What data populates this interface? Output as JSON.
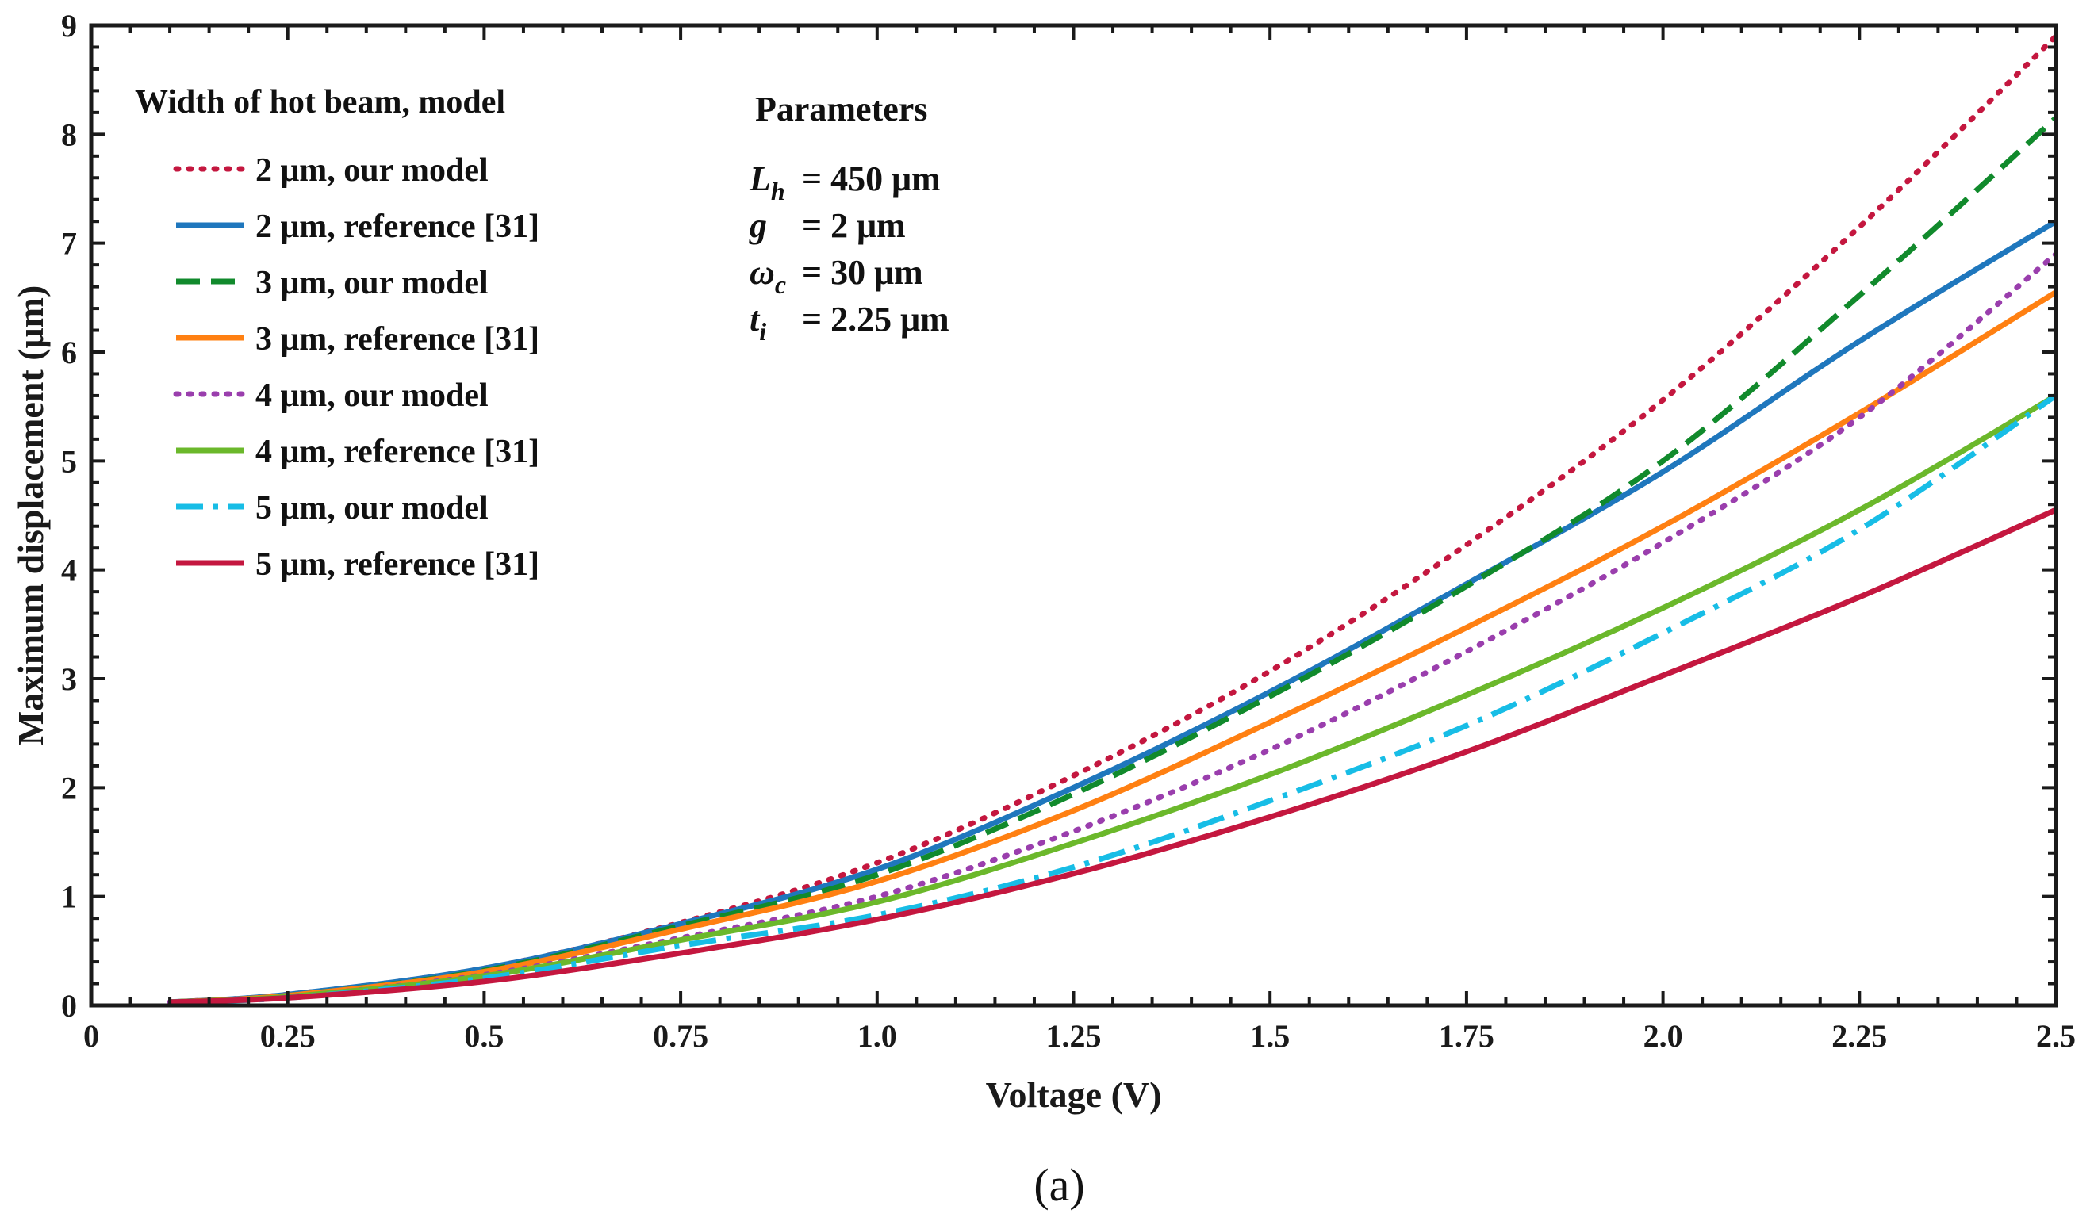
{
  "chart_data": {
    "type": "line",
    "title": "",
    "xlabel": "Voltage (V)",
    "ylabel": "Maximum displacement (μm)",
    "xlim": [
      0,
      2.5
    ],
    "ylim": [
      0,
      9
    ],
    "grid": false,
    "x_ticks": [
      0,
      0.25,
      0.5,
      0.75,
      1.0,
      1.25,
      1.5,
      1.75,
      2.0,
      2.25,
      2.5
    ],
    "x_tick_labels": [
      "0",
      "0.25",
      "0.5",
      "0.75",
      "1.0",
      "1.25",
      "1.5",
      "1.75",
      "2.0",
      "2.25",
      "2.5"
    ],
    "y_ticks": [
      0,
      1,
      2,
      3,
      4,
      5,
      6,
      7,
      8,
      9
    ],
    "y_tick_labels": [
      "0",
      "1",
      "2",
      "3",
      "4",
      "5",
      "6",
      "7",
      "8",
      "9"
    ],
    "legend": {
      "title": "Width of hot beam, model",
      "position": "top-left"
    },
    "x": [
      0.1,
      0.25,
      0.5,
      0.75,
      1.0,
      1.25,
      1.5,
      1.75,
      2.0,
      2.25,
      2.5
    ],
    "series": [
      {
        "name": "2 μm, our model",
        "color": "#c4173f",
        "dash": "dotted",
        "values": [
          0.03,
          0.1,
          0.34,
          0.76,
          1.31,
          2.11,
          3.07,
          4.23,
          5.56,
          7.15,
          8.9
        ]
      },
      {
        "name": "2 μm, reference [31]",
        "color": "#1f77bd",
        "dash": "solid",
        "values": [
          0.03,
          0.1,
          0.34,
          0.75,
          1.25,
          2.0,
          2.88,
          3.87,
          4.9,
          6.1,
          7.2
        ]
      },
      {
        "name": "3 μm, our model",
        "color": "#118a2c",
        "dash": "dashed",
        "values": [
          0.03,
          0.09,
          0.32,
          0.73,
          1.2,
          1.94,
          2.84,
          3.85,
          5.0,
          6.52,
          8.15
        ]
      },
      {
        "name": "3 μm, reference [31]",
        "color": "#ff8012",
        "dash": "solid",
        "values": [
          0.03,
          0.09,
          0.31,
          0.7,
          1.14,
          1.79,
          2.6,
          3.47,
          4.4,
          5.44,
          6.55
        ]
      },
      {
        "name": "4 μm, our model",
        "color": "#9a3ead",
        "dash": "dotted",
        "values": [
          0.03,
          0.08,
          0.28,
          0.62,
          1.0,
          1.6,
          2.35,
          3.25,
          4.25,
          5.4,
          6.9
        ]
      },
      {
        "name": "4 μm, reference [31]",
        "color": "#6bb82b",
        "dash": "solid",
        "values": [
          0.03,
          0.08,
          0.27,
          0.6,
          0.95,
          1.49,
          2.12,
          2.85,
          3.65,
          4.55,
          5.6
        ]
      },
      {
        "name": "5 μm, our model",
        "color": "#17bde6",
        "dash": "dashdot",
        "values": [
          0.03,
          0.07,
          0.25,
          0.55,
          0.83,
          1.27,
          1.88,
          2.57,
          3.42,
          4.37,
          5.6
        ]
      },
      {
        "name": "5 μm, reference [31]",
        "color": "#c4173f",
        "dash": "solid",
        "values": [
          0.03,
          0.07,
          0.22,
          0.48,
          0.79,
          1.21,
          1.73,
          2.33,
          3.03,
          3.75,
          4.55
        ]
      }
    ],
    "annotations": {
      "title": "Parameters",
      "lines": [
        {
          "symbol": "L",
          "sub": "h",
          "eq": "= 450 μm"
        },
        {
          "symbol": "g",
          "sub": "",
          "eq": "= 2 μm"
        },
        {
          "symbol": "ω",
          "sub": "c",
          "eq": "= 30 μm"
        },
        {
          "symbol": "t",
          "sub": "i",
          "eq": "= 2.25 μm"
        }
      ]
    }
  },
  "caption": "(a)"
}
